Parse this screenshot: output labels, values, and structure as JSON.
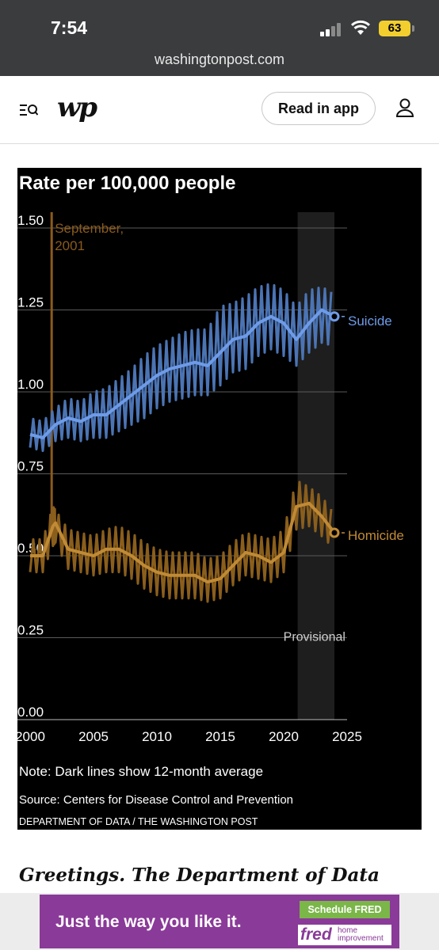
{
  "status_bar": {
    "time": "7:54",
    "battery": "63",
    "url": "washingtonpost.com"
  },
  "header": {
    "logo": "wp",
    "read_in_app": "Read in app"
  },
  "graphic": {
    "note": "Note: Dark lines show 12-month average",
    "source": "Source: Centers for Disease Control and Prevention",
    "credit": "DEPARTMENT OF DATA / THE WASHINGTON POST"
  },
  "headline": "Greetings. The Department of Data",
  "ad": {
    "text": "Just the way you like it.",
    "cta": "Schedule FRED",
    "brand": "fred",
    "brand_sub": "home improvement"
  },
  "chart_data": {
    "type": "line",
    "title": "Rate per 100,000 people",
    "ylim": [
      0,
      1.5
    ],
    "yticks": [
      "0.00",
      "0.25",
      "0.50",
      "0.75",
      "1.00",
      "1.25",
      "1.50"
    ],
    "xlim": [
      1999,
      2025
    ],
    "xticks": [
      "2000",
      "2005",
      "2010",
      "2015",
      "2020",
      "2025"
    ],
    "grid": true,
    "annotations": {
      "event": "September, 2001",
      "event_x": 2001.7,
      "shaded": "Provisional",
      "shaded_range": [
        2021.1,
        2024.0
      ]
    },
    "colors": {
      "suicide_avg": "#6e9be8",
      "suicide_monthly": "#4b74b4",
      "homicide_avg": "#c08a36",
      "homicide_monthly": "#8a5e1c",
      "event_line": "#8a5a1c",
      "grid": "#5a5a5a",
      "shade": "#1e1e1e"
    },
    "series": [
      {
        "name": "Suicide",
        "x": [
          2000,
          2001,
          2002,
          2003,
          2004,
          2005,
          2006,
          2007,
          2008,
          2009,
          2010,
          2011,
          2012,
          2013,
          2014,
          2015,
          2016,
          2017,
          2018,
          2019,
          2020,
          2021,
          2022,
          2023,
          2024
        ],
        "y": [
          0.87,
          0.86,
          0.9,
          0.92,
          0.91,
          0.93,
          0.93,
          0.96,
          0.99,
          1.02,
          1.05,
          1.07,
          1.08,
          1.09,
          1.08,
          1.12,
          1.16,
          1.17,
          1.21,
          1.23,
          1.21,
          1.16,
          1.21,
          1.25,
          1.23
        ],
        "monthly_low": [
          0.83,
          0.82,
          0.85,
          0.86,
          0.85,
          0.86,
          0.86,
          0.88,
          0.9,
          0.92,
          0.95,
          0.97,
          0.98,
          0.99,
          0.99,
          1.02,
          1.06,
          1.07,
          1.11,
          1.13,
          1.11,
          1.08,
          1.12,
          1.15,
          1.14
        ],
        "monthly_high": [
          0.92,
          0.91,
          0.95,
          0.98,
          0.97,
          1.0,
          1.01,
          1.04,
          1.07,
          1.11,
          1.14,
          1.16,
          1.18,
          1.19,
          1.19,
          1.26,
          1.27,
          1.29,
          1.32,
          1.33,
          1.31,
          1.26,
          1.31,
          1.32,
          1.3
        ]
      },
      {
        "name": "Homicide",
        "x": [
          2000,
          2001,
          2001.8,
          2002,
          2003,
          2004,
          2005,
          2006,
          2007,
          2008,
          2009,
          2010,
          2011,
          2012,
          2013,
          2014,
          2015,
          2016,
          2017,
          2018,
          2019,
          2020,
          2021,
          2022,
          2023,
          2024
        ],
        "y": [
          0.5,
          0.5,
          0.59,
          0.6,
          0.52,
          0.51,
          0.5,
          0.52,
          0.52,
          0.5,
          0.47,
          0.45,
          0.44,
          0.44,
          0.44,
          0.42,
          0.43,
          0.47,
          0.51,
          0.5,
          0.48,
          0.51,
          0.65,
          0.66,
          0.62,
          0.57
        ],
        "monthly_low": [
          0.45,
          0.45,
          0.53,
          0.54,
          0.46,
          0.45,
          0.44,
          0.45,
          0.45,
          0.43,
          0.4,
          0.38,
          0.37,
          0.37,
          0.37,
          0.36,
          0.37,
          0.41,
          0.44,
          0.43,
          0.42,
          0.45,
          0.58,
          0.59,
          0.56,
          0.52
        ],
        "monthly_high": [
          0.55,
          0.55,
          0.65,
          0.64,
          0.58,
          0.57,
          0.56,
          0.58,
          0.59,
          0.57,
          0.54,
          0.52,
          0.51,
          0.51,
          0.51,
          0.49,
          0.5,
          0.54,
          0.57,
          0.56,
          0.55,
          0.58,
          0.73,
          0.71,
          0.68,
          0.63
        ]
      }
    ]
  }
}
